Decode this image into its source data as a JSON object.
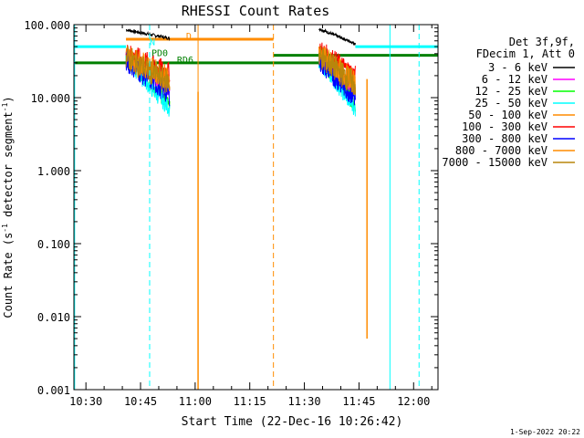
{
  "chart_data": {
    "type": "line",
    "title": "RHESSI Count Rates",
    "xlabel": "Start Time (22-Dec-16 10:26:42)",
    "ylabel_main": "Count Rate (s",
    "ylabel_sup": "-1",
    "ylabel_rest": " detector segment",
    "ylabel_sup2": "-1",
    "ylabel_end": ")",
    "yscale": "log",
    "ylim": [
      0.001,
      100
    ],
    "xlim_minutes": [
      26.7,
      126.7
    ],
    "x_ticks": [
      {
        "label": "10:30",
        "minute": 30
      },
      {
        "label": "10:45",
        "minute": 45
      },
      {
        "label": "11:00",
        "minute": 60
      },
      {
        "label": "11:15",
        "minute": 75
      },
      {
        "label": "11:30",
        "minute": 90
      },
      {
        "label": "11:45",
        "minute": 105
      },
      {
        "label": "12:00",
        "minute": 120
      }
    ],
    "y_ticks": [
      {
        "label": "100.000",
        "value": 100
      },
      {
        "label": "10.000",
        "value": 10
      },
      {
        "label": "1.000",
        "value": 1
      },
      {
        "label": "0.100",
        "value": 0.1
      },
      {
        "label": "0.010",
        "value": 0.01
      },
      {
        "label": "0.001",
        "value": 0.001
      }
    ],
    "legend": {
      "header1": "Det 3f,9f,",
      "header2": "FDecim 1, Att 0",
      "placement": "outside-right"
    },
    "series": [
      {
        "name": "3 - 6 keV",
        "color": "#000000",
        "segments": [
          [
            41,
            53,
            85,
            65
          ],
          [
            94,
            104,
            88,
            55
          ]
        ]
      },
      {
        "name": "6 - 12 keV",
        "color": "#ff00ff",
        "segments": [
          [
            41,
            53,
            36,
            13
          ],
          [
            94,
            104,
            36,
            12
          ]
        ]
      },
      {
        "name": "12 - 25 keV",
        "color": "#00ff00",
        "segments": [
          [
            41,
            53,
            34,
            8
          ],
          [
            94,
            104,
            34,
            8
          ]
        ]
      },
      {
        "name": "25 - 50 keV",
        "color": "#00ffff",
        "segments": [
          [
            41,
            53,
            33,
            7
          ],
          [
            94,
            104,
            33,
            7
          ]
        ]
      },
      {
        "name": "50 - 100 keV",
        "color": "#ff8c00",
        "segments": [
          [
            41,
            53,
            36,
            17
          ],
          [
            94,
            104,
            37,
            15
          ]
        ]
      },
      {
        "name": "100 - 300 keV",
        "color": "#ff0000",
        "segments": [
          [
            41,
            53,
            42,
            22
          ],
          [
            94,
            104,
            46,
            20
          ]
        ]
      },
      {
        "name": "300 - 800 keV",
        "color": "#0000ff",
        "segments": [
          [
            41,
            53,
            32,
            11
          ],
          [
            94,
            104,
            32,
            10
          ]
        ]
      },
      {
        "name": "800 - 7000 keV",
        "color": "#ff8c00",
        "segments": [
          [
            41,
            53,
            38,
            18
          ],
          [
            94,
            104,
            40,
            16
          ]
        ]
      },
      {
        "name": "7000 - 15000 keV",
        "color": "#b8860b",
        "segments": [
          [
            41,
            53,
            36,
            16
          ],
          [
            94,
            104,
            38,
            15
          ]
        ]
      }
    ],
    "annotations": [
      {
        "label": "N",
        "color": "#00ffff",
        "minute": 47.5,
        "value": 52
      },
      {
        "label": "PD0",
        "color": "#008000",
        "minute": 48,
        "value": 37
      },
      {
        "label": "RD6",
        "color": "#008000",
        "minute": 55,
        "value": 30
      },
      {
        "label": "D",
        "color": "#ff8c00",
        "minute": 57.5,
        "value": 63
      }
    ],
    "vertical_lines": [
      {
        "minute": 26.9,
        "color": "#00ffff",
        "dashed": false
      },
      {
        "minute": 47.5,
        "color": "#00ffff",
        "dashed": true
      },
      {
        "minute": 60.8,
        "color": "#ff8c00",
        "dashed": false
      },
      {
        "minute": 81.5,
        "color": "#ff8c00",
        "dashed": true
      },
      {
        "minute": 113.5,
        "color": "#00ffff",
        "dashed": false
      },
      {
        "minute": 121.5,
        "color": "#00ffff",
        "dashed": true
      }
    ],
    "horizontal_bars": [
      {
        "color": "#00ffff",
        "value": 50,
        "segments": [
          [
            26.7,
            41
          ],
          [
            104,
            126.7
          ]
        ]
      },
      {
        "color": "#ff8c00",
        "value": 63,
        "segments": [
          [
            41,
            81.5
          ]
        ]
      },
      {
        "color": "#008000",
        "value": 38,
        "segments": [
          [
            81.5,
            126.7
          ]
        ]
      },
      {
        "color": "#008000",
        "value": 30,
        "segments": [
          [
            26.7,
            81.5
          ],
          [
            81.5,
            94
          ]
        ]
      }
    ],
    "spikes": [
      {
        "minute": 60.8,
        "from": 12,
        "to": 0.001,
        "color": "#ff8c00"
      },
      {
        "minute": 107.2,
        "from": 18,
        "to": 0.005,
        "color": "#ff8c00"
      }
    ]
  },
  "footer": {
    "date": "1-Sep-2022 20:22"
  }
}
